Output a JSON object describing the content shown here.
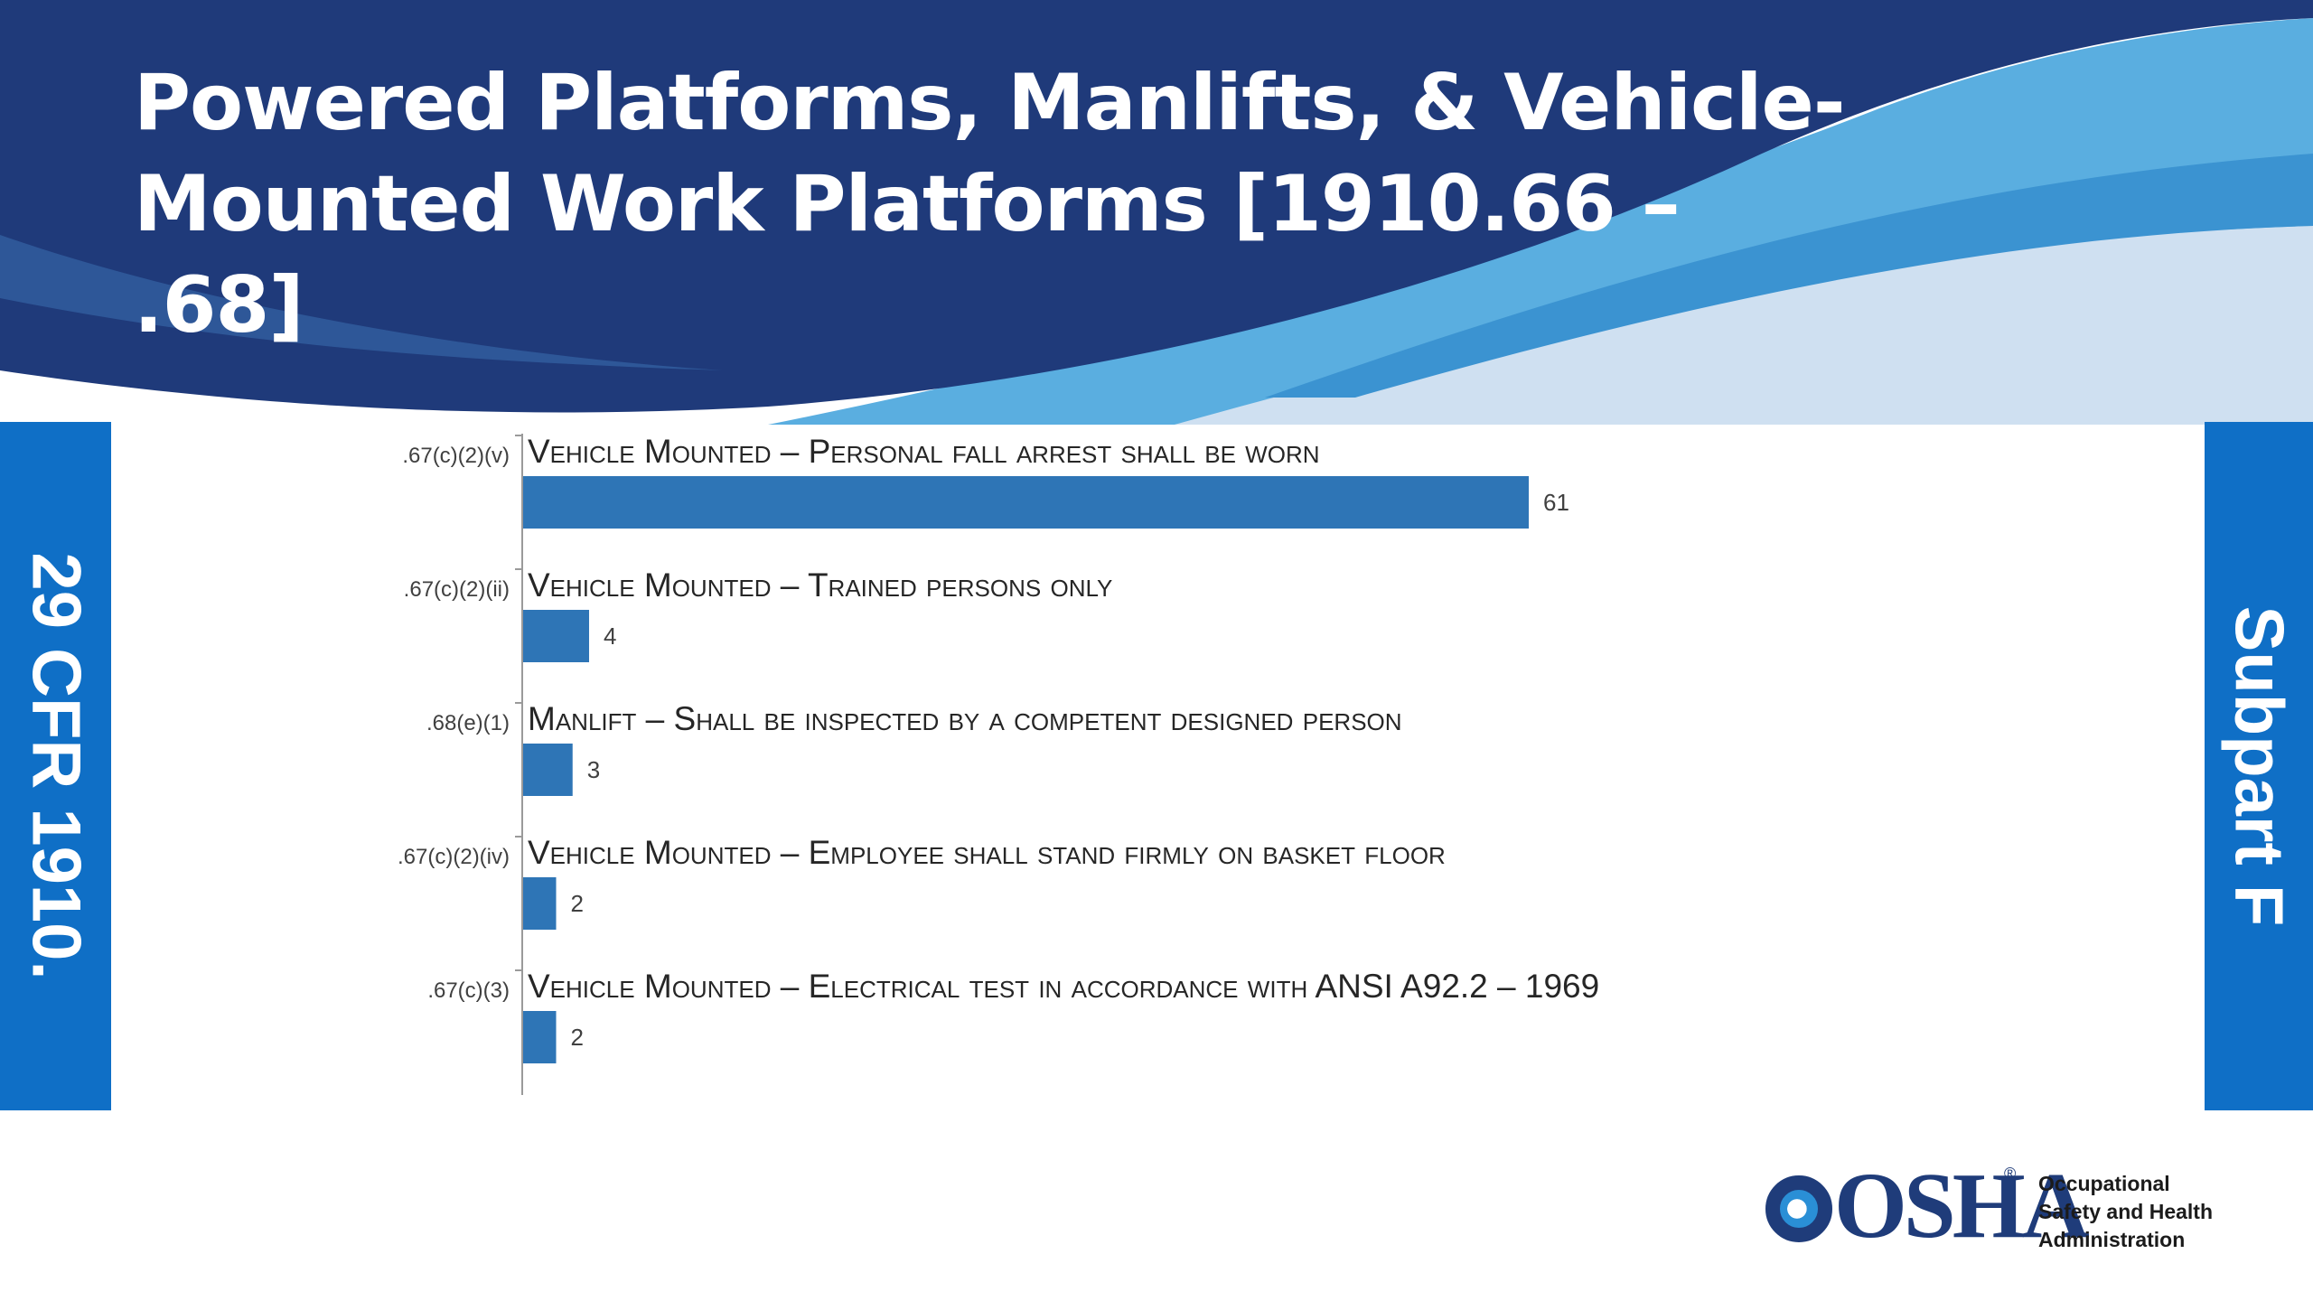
{
  "slide": {
    "title_line1": "Powered Platforms, Manlifts, & Vehicle-",
    "title_line2": "Mounted Work Platforms [1910.66 – .68]",
    "left_tab": "29 CFR 1910.",
    "right_tab": "Subpart F"
  },
  "colors": {
    "banner_dark": "#1f3a7a",
    "banner_light": "#5aaee0",
    "banner_pale": "#c9dcef",
    "tab_blue": "#0f6fc6",
    "bar_blue": "#2e75b6"
  },
  "chart_data": {
    "type": "bar",
    "orientation": "horizontal",
    "categories": [
      ".67(c)(2)(v)",
      ".67(c)(2)(ii)",
      ".68(e)(1)",
      ".67(c)(2)(iv)",
      ".67(c)(3)"
    ],
    "descriptions": [
      "Vehicle Mounted – Personal fall arrest shall be worn",
      "Vehicle Mounted – Trained persons only",
      "Manlift – Shall be inspected by a competent designed person",
      "Vehicle Mounted – Employee shall stand firmly on basket floor",
      "Vehicle Mounted – Electrical test in accordance with ANSI A92.2 – 1969"
    ],
    "values": [
      61,
      4,
      3,
      2,
      2
    ],
    "data_labels": [
      "61",
      "4",
      "3",
      "2",
      "2"
    ],
    "xlim": [
      0,
      61
    ],
    "grid": false,
    "legend": "none",
    "bar_color": "#2e75b6"
  },
  "logo": {
    "wordmark": "OSHA",
    "registered": "®",
    "name_lines": [
      "Occupational",
      "Safety and Health",
      "Administration"
    ]
  }
}
